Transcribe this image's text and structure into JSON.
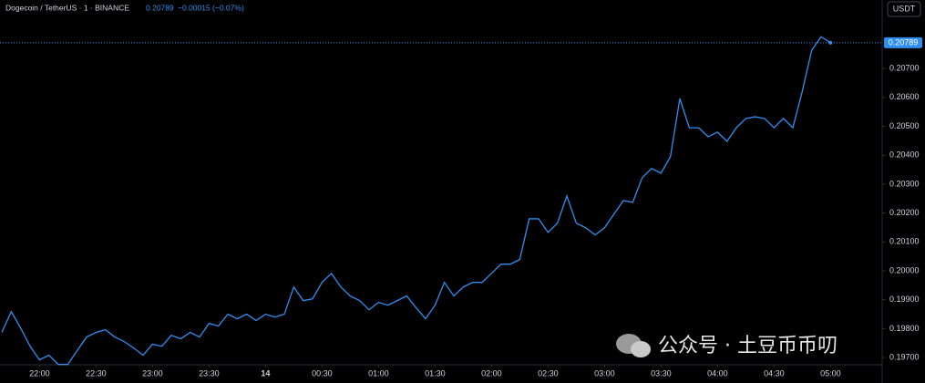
{
  "header": {
    "symbol": "Dogecoin / TetherUS · 1 · BINANCE",
    "price": "0.20789",
    "change": "−0.00015 (−0.07%)",
    "currency": "USDT"
  },
  "watermark": "公众号 · 土豆币币叨",
  "chart_data": {
    "type": "line",
    "x": [
      "21:40",
      "21:45",
      "21:50",
      "21:55",
      "22:00",
      "22:05",
      "22:10",
      "22:15",
      "22:20",
      "22:25",
      "22:30",
      "22:35",
      "22:40",
      "22:45",
      "22:50",
      "22:55",
      "23:00",
      "23:05",
      "23:10",
      "23:15",
      "23:20",
      "23:25",
      "23:30",
      "23:35",
      "23:40",
      "23:45",
      "23:50",
      "23:55",
      "00:00",
      "00:05",
      "00:10",
      "00:15",
      "00:20",
      "00:25",
      "00:30",
      "00:35",
      "00:40",
      "00:45",
      "00:50",
      "00:55",
      "01:00",
      "01:05",
      "01:10",
      "01:15",
      "01:20",
      "01:25",
      "01:30",
      "01:35",
      "01:40",
      "01:45",
      "01:50",
      "01:55",
      "02:00",
      "02:05",
      "02:10",
      "02:15",
      "02:20",
      "02:25",
      "02:30",
      "02:35",
      "02:40",
      "02:45",
      "02:50",
      "02:55",
      "03:00",
      "03:05",
      "03:10",
      "03:15",
      "03:20",
      "03:25",
      "03:30",
      "03:35",
      "03:40",
      "03:45",
      "03:50",
      "03:55",
      "04:00",
      "04:05",
      "04:10",
      "04:15",
      "04:20",
      "04:25",
      "04:30",
      "04:35",
      "04:40",
      "04:45",
      "04:50",
      "04:55",
      "05:00"
    ],
    "series": [
      {
        "name": "Dogecoin / TetherUS",
        "color": "#2f8ff0",
        "values": [
          0.19787,
          0.19859,
          0.19802,
          0.19739,
          0.19692,
          0.19708,
          0.19676,
          0.19676,
          0.19724,
          0.19771,
          0.19787,
          0.19796,
          0.19771,
          0.19755,
          0.19733,
          0.19708,
          0.19746,
          0.19739,
          0.19777,
          0.19765,
          0.19787,
          0.19771,
          0.19818,
          0.19809,
          0.1985,
          0.19834,
          0.1985,
          0.19828,
          0.1985,
          0.1984,
          0.1985,
          0.19944,
          0.19897,
          0.19903,
          0.1996,
          0.19991,
          0.19944,
          0.19913,
          0.19897,
          0.19865,
          0.19891,
          0.19881,
          0.19897,
          0.19913,
          0.19872,
          0.19834,
          0.19881,
          0.1996,
          0.19913,
          0.19944,
          0.1996,
          0.1996,
          0.19991,
          0.20023,
          0.20023,
          0.20039,
          0.2018,
          0.2018,
          0.20133,
          0.20165,
          0.20259,
          0.20165,
          0.20149,
          0.20124,
          0.20149,
          0.20196,
          0.20243,
          0.20237,
          0.20322,
          0.20354,
          0.20338,
          0.20395,
          0.20596,
          0.20495,
          0.20495,
          0.20464,
          0.2048,
          0.20448,
          0.20495,
          0.20527,
          0.20533,
          0.20527,
          0.20495,
          0.20527,
          0.20495,
          0.20621,
          0.20763,
          0.2081,
          0.20789
        ]
      }
    ],
    "xticks": [
      "22:00",
      "22:30",
      "23:00",
      "23:30",
      {
        "value": "00:00",
        "label": "14"
      },
      "00:30",
      "01:00",
      "01:30",
      "02:00",
      "02:30",
      "03:00",
      "03:30",
      "04:00",
      "04:30",
      "05:00"
    ],
    "ylim": [
      0.19675,
      0.20937
    ],
    "yticks": [
      {
        "value": 0.197,
        "label": "0.19700"
      },
      {
        "value": 0.198,
        "label": "0.19800"
      },
      {
        "value": 0.199,
        "label": "0.19900"
      },
      {
        "value": 0.2,
        "label": "0.20000"
      },
      {
        "value": 0.201,
        "label": "0.20100"
      },
      {
        "value": 0.202,
        "label": "0.20200"
      },
      {
        "value": 0.203,
        "label": "0.20300"
      },
      {
        "value": 0.204,
        "label": "0.20400"
      },
      {
        "value": 0.205,
        "label": "0.20500"
      },
      {
        "value": 0.206,
        "label": "0.20600"
      },
      {
        "value": 0.207,
        "label": "0.20700"
      }
    ],
    "last_price": {
      "value": 0.20789,
      "label": "0.20789"
    },
    "grid": false
  }
}
